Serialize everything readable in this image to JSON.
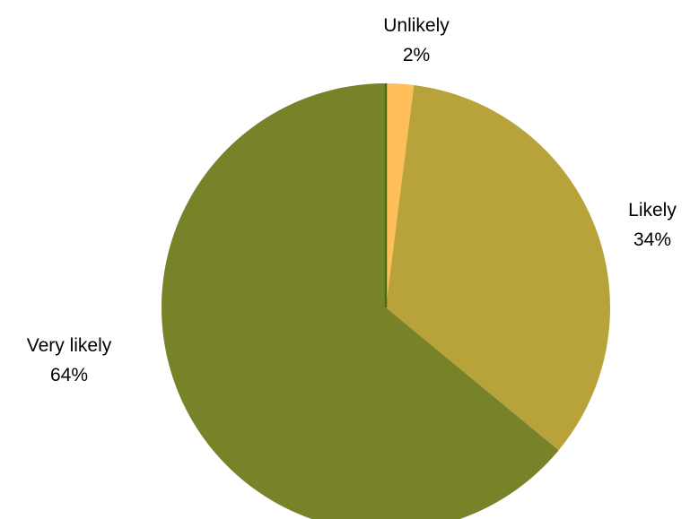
{
  "chart_data": {
    "type": "pie",
    "title": "",
    "start_angle_deg": 0,
    "direction": "clockwise",
    "slices": [
      {
        "label": "Unlikely",
        "value": 2,
        "value_text": "2%",
        "color": "#FFBE5A"
      },
      {
        "label": "Likely",
        "value": 34,
        "value_text": "34%",
        "color": "#B8A33A"
      },
      {
        "label": "Very likely",
        "value": 64,
        "value_text": "64%",
        "color": "#788228"
      }
    ],
    "legend": "none",
    "edge_color": "#4F6B10"
  }
}
